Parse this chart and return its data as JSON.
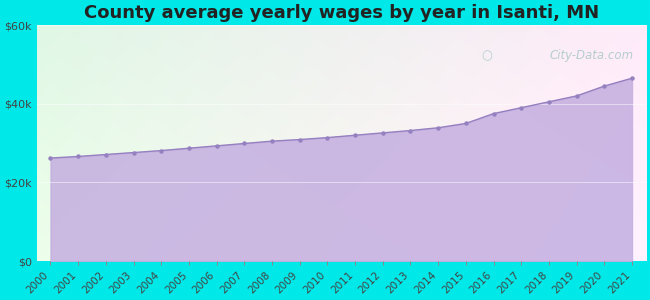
{
  "title": "County average yearly wages by year in Isanti, MN",
  "years": [
    2000,
    2001,
    2002,
    2003,
    2004,
    2005,
    2006,
    2007,
    2008,
    2009,
    2010,
    2011,
    2012,
    2013,
    2014,
    2015,
    2016,
    2017,
    2018,
    2019,
    2020,
    2021
  ],
  "wages": [
    26200,
    26600,
    27100,
    27600,
    28100,
    28700,
    29300,
    29900,
    30500,
    30900,
    31400,
    32000,
    32600,
    33200,
    33900,
    35000,
    37500,
    39000,
    40500,
    42000,
    44500,
    46500
  ],
  "ylim": [
    0,
    60000
  ],
  "yticks": [
    0,
    20000,
    40000,
    60000
  ],
  "ytick_labels": [
    "$0",
    "$20k",
    "$40k",
    "$60k"
  ],
  "fill_color": "#c4aee0",
  "line_color": "#9580c0",
  "marker_color": "#9580c0",
  "background_color_fig": "#00e8e8",
  "watermark_text": "City-Data.com",
  "title_fontsize": 13,
  "tick_fontsize": 8
}
